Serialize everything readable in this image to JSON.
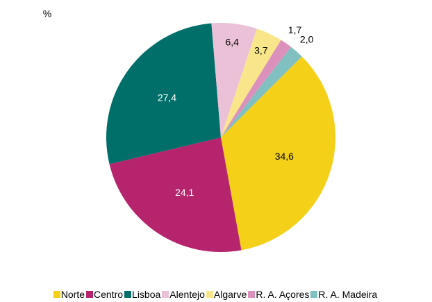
{
  "chart_data": {
    "type": "pie",
    "unit_label": "%",
    "categories": [
      "Norte",
      "Centro",
      "Lisboa",
      "Alentejo",
      "Algarve",
      "R. A. Açores",
      "R. A. Madeira"
    ],
    "values": [
      34.6,
      24.1,
      27.4,
      6.4,
      3.7,
      1.7,
      2.0
    ],
    "value_labels": [
      "34,6",
      "24,1",
      "27,4",
      "6,4",
      "3,7",
      "1,7",
      "2,0"
    ],
    "colors": [
      "#f5d019",
      "#b5246d",
      "#006f6a",
      "#ebc1d8",
      "#fae68a",
      "#dc90bc",
      "#80c0c0"
    ],
    "legend": "bottom"
  }
}
